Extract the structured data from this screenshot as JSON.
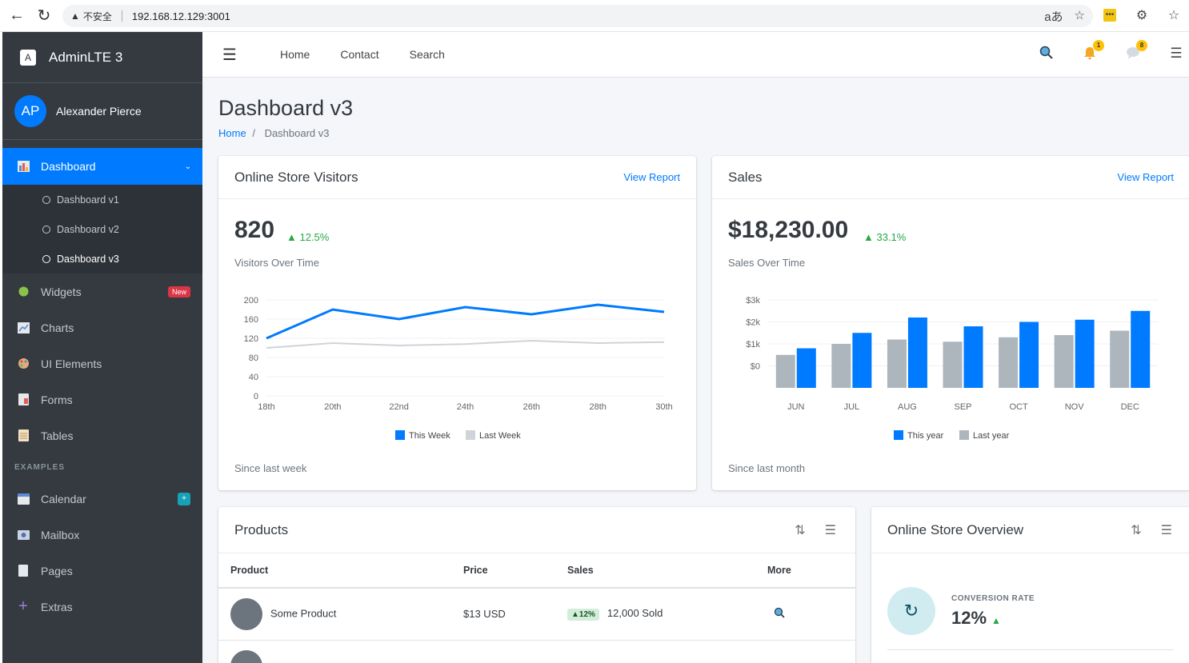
{
  "browser": {
    "warning_label": "不安全",
    "url": "192.168.12.129:3001"
  },
  "sidebar": {
    "brand_logo": "A",
    "brand": "AdminLTE 3",
    "user_initials": "AP",
    "user_name": "Alexander Pierce",
    "items": [
      {
        "label": "Dashboard",
        "icon": "dashboard-icon"
      },
      {
        "label": "Widgets",
        "icon": "puzzle-icon",
        "badge": "New"
      },
      {
        "label": "Charts",
        "icon": "chart-icon"
      },
      {
        "label": "UI Elements",
        "icon": "palette-icon"
      },
      {
        "label": "Forms",
        "icon": "forms-icon"
      },
      {
        "label": "Tables",
        "icon": "tables-icon"
      }
    ],
    "submenu": [
      "Dashboard v1",
      "Dashboard v2",
      "Dashboard v3"
    ],
    "examples_header": "EXAMPLES",
    "examples": [
      {
        "label": "Calendar",
        "icon": "calendar-icon",
        "badge": "+"
      },
      {
        "label": "Mailbox",
        "icon": "mailbox-icon"
      },
      {
        "label": "Pages",
        "icon": "pages-icon"
      },
      {
        "label": "Extras",
        "icon": "plus-icon"
      }
    ]
  },
  "topnav": {
    "links": [
      "Home",
      "Contact",
      "Search"
    ],
    "notifications_count": "1",
    "messages_count": "8"
  },
  "page": {
    "title": "Dashboard v3",
    "breadcrumb_home": "Home",
    "breadcrumb_sep": "/",
    "breadcrumb_current": "Dashboard v3"
  },
  "visitors_card": {
    "title": "Online Store Visitors",
    "link": "View Report",
    "value": "820",
    "change": "▲ 12.5%",
    "subtitle": "Visitors Over Time",
    "footer": "Since last week"
  },
  "sales_card": {
    "title": "Sales",
    "link": "View Report",
    "value": "$18,230.00",
    "change": "▲ 33.1%",
    "subtitle": "Sales Over Time",
    "footer": "Since last month"
  },
  "products_card": {
    "title": "Products",
    "headers": [
      "Product",
      "Price",
      "Sales",
      "More"
    ],
    "rows": [
      {
        "product": "Some Product",
        "price": "$13 USD",
        "badge": "▲12%",
        "sales": "12,000 Sold"
      }
    ]
  },
  "overview_card": {
    "title": "Online Store Overview",
    "label": "CONVERSION RATE",
    "value": "12%"
  },
  "colors": {
    "primary": "#007bff",
    "gray": "#ced4da",
    "bar_gray": "#adb5bd",
    "success": "#28a745"
  },
  "chart_data": [
    {
      "type": "line",
      "categories": [
        "18th",
        "20th",
        "22nd",
        "24th",
        "26th",
        "28th",
        "30th"
      ],
      "series": [
        {
          "name": "This Week",
          "values": [
            120,
            180,
            160,
            185,
            170,
            190,
            175
          ]
        },
        {
          "name": "Last Week",
          "values": [
            100,
            110,
            105,
            108,
            115,
            110,
            112
          ]
        }
      ],
      "yticks": [
        "200",
        "160",
        "120",
        "80",
        "40",
        "0"
      ],
      "ylim": [
        0,
        200
      ],
      "legend": "bottom"
    },
    {
      "type": "bar",
      "categories": [
        "JUN",
        "JUL",
        "AUG",
        "SEP",
        "OCT",
        "NOV",
        "DEC"
      ],
      "series": [
        {
          "name": "This year",
          "values": [
            800,
            1500,
            2200,
            1800,
            2000,
            2100,
            2500
          ]
        },
        {
          "name": "Last year",
          "values": [
            500,
            1000,
            1200,
            1100,
            1300,
            1400,
            1600
          ]
        }
      ],
      "yticks": [
        "$3k",
        "$2k",
        "$1k",
        "$0"
      ],
      "ylim": [
        -1000,
        3000
      ],
      "legend": "bottom"
    }
  ]
}
